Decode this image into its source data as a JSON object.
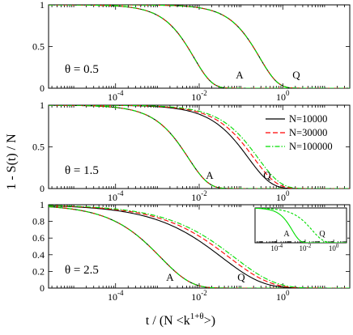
{
  "chart_data": {
    "type": "line",
    "x_scale": "log",
    "y_title": "1 - S(t) / N",
    "x_title_main": "t / (N <k",
    "x_title_sup": "1+θ",
    "x_title_end": ">)",
    "legend": {
      "placement": "right of middle panel",
      "entries": [
        "N=10000",
        "N=30000",
        "N=100000"
      ]
    },
    "series_styles": [
      {
        "name": "N=10000",
        "color": "#000000",
        "dash": "solid"
      },
      {
        "name": "N=30000",
        "color": "#ff0000",
        "dash": "dashed"
      },
      {
        "name": "N=100000",
        "color": "#00dd00",
        "dash": "dash-dot"
      }
    ],
    "panels": [
      {
        "id": "top",
        "label": "θ = 0.5",
        "xlim": [
          2.5e-06,
          40
        ],
        "ylim": [
          0,
          1
        ],
        "yticks": [
          "0",
          "0.5",
          "1"
        ],
        "xticks": [
          "10-4",
          "10-2",
          "100"
        ],
        "curves": [
          {
            "tag": "A",
            "label": "A",
            "tau": 0.0075,
            "beta": 1.0,
            "spread": 0
          },
          {
            "tag": "Q",
            "label": "Q",
            "tau": 0.28,
            "beta": 1.0,
            "spread": 0
          }
        ]
      },
      {
        "id": "middle",
        "label": "θ = 1.5",
        "xlim": [
          2.5e-06,
          40
        ],
        "ylim": [
          0,
          1
        ],
        "yticks": [
          "0",
          "0.5",
          "1"
        ],
        "xticks": [
          "10-4",
          "10-2",
          "100"
        ],
        "curves": [
          {
            "tag": "A",
            "label": "A",
            "tau": 0.0055,
            "beta": 0.9,
            "spread": 0
          },
          {
            "tag": "Q",
            "label": "Q",
            "tau": 0.15,
            "beta": 0.8,
            "spread": 0.35
          }
        ]
      },
      {
        "id": "bottom",
        "label": "θ = 2.5",
        "xlim": [
          2.5e-06,
          40
        ],
        "ylim": [
          0,
          1
        ],
        "yticks": [
          "0",
          "0.2",
          "0.4",
          "0.6",
          "0.8",
          "1"
        ],
        "xticks": [
          "10-4",
          "10-2",
          "100"
        ],
        "curves": [
          {
            "tag": "A",
            "label": "A",
            "tau": 0.0012,
            "beta": 0.6,
            "spread": 0
          },
          {
            "tag": "Q",
            "label": "Q",
            "tau": 0.035,
            "beta": 0.45,
            "spread": 0.5
          }
        ]
      }
    ],
    "inset": {
      "xlim": [
        3e-06,
        8
      ],
      "ylim": [
        0,
        1
      ],
      "xticks": [
        "10-4",
        "10-2",
        "100"
      ],
      "curves": [
        {
          "tag": "A",
          "label": "A",
          "tau": 0.0012,
          "beta": 0.8,
          "spread": 0
        },
        {
          "tag": "Q",
          "label": "Q",
          "tau": 0.03,
          "beta": 0.55,
          "spread": 0
        }
      ]
    }
  }
}
